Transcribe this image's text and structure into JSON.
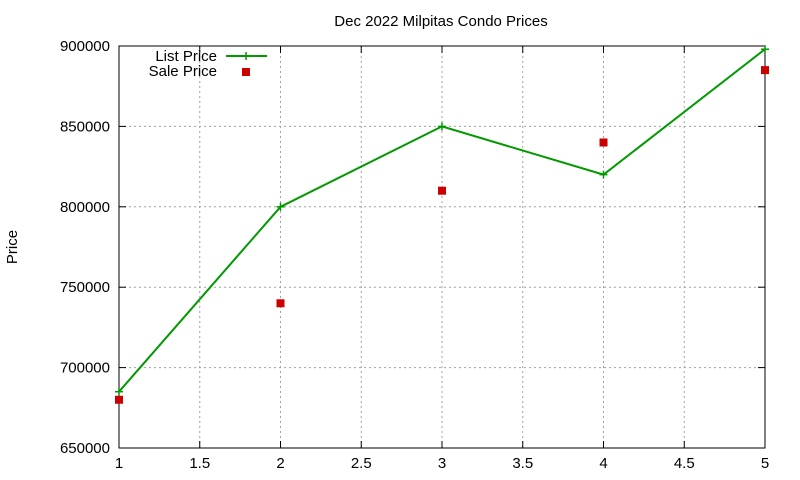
{
  "chart_data": {
    "type": "line",
    "title": "Dec 2022 Milpitas Condo Prices",
    "xlabel": "",
    "ylabel": "Price",
    "xlim": [
      1,
      5
    ],
    "ylim": [
      650000,
      900000
    ],
    "x_ticks": [
      "1",
      "1.5",
      "2",
      "2.5",
      "3",
      "3.5",
      "4",
      "4.5",
      "5"
    ],
    "y_ticks": [
      "650000",
      "700000",
      "750000",
      "800000",
      "850000",
      "900000"
    ],
    "grid": true,
    "legend_position": "top-left",
    "series": [
      {
        "name": "List Price",
        "style": "linespoints",
        "color": "#009900",
        "marker": "plus",
        "x": [
          1,
          2,
          3,
          4,
          5
        ],
        "y": [
          685000,
          800000,
          850000,
          820000,
          898000
        ]
      },
      {
        "name": "Sale Price",
        "style": "points",
        "color": "#cc0000",
        "marker": "square",
        "x": [
          1,
          2,
          3,
          4,
          5
        ],
        "y": [
          680000,
          740000,
          810000,
          840000,
          885000
        ]
      }
    ]
  }
}
